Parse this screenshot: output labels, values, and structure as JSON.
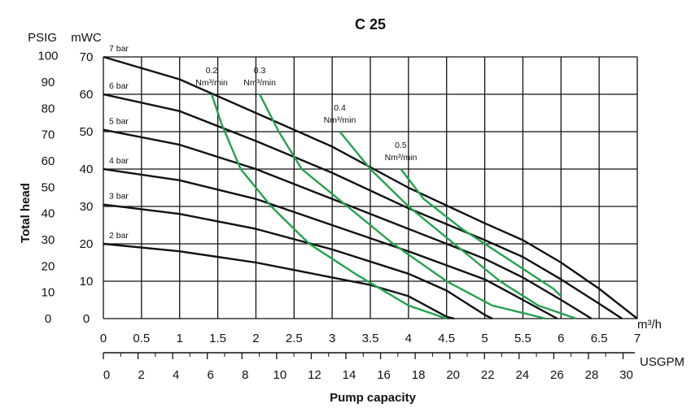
{
  "chart_data": {
    "type": "line",
    "title": "C 25",
    "xlabel": "Pump capacity",
    "ylabel": "Total head",
    "x_unit": "m³/h",
    "x2_unit": "USGPM",
    "y_unit": "mWC",
    "y2_unit": "PSIG",
    "xlim": [
      0,
      7
    ],
    "ylim": [
      0,
      70
    ],
    "grid": true,
    "x_ticks": [
      "0",
      "0.5",
      "1",
      "1.5",
      "2",
      "2.5",
      "3",
      "3.5",
      "4",
      "4.5",
      "5",
      "5.5",
      "6",
      "6.5",
      "7"
    ],
    "x2_ticks": [
      "0",
      "2",
      "4",
      "6",
      "8",
      "10",
      "12",
      "14",
      "16",
      "18",
      "20",
      "22",
      "24",
      "26",
      "28",
      "30"
    ],
    "y_ticks": [
      "0",
      "10",
      "20",
      "30",
      "40",
      "50",
      "60",
      "70"
    ],
    "y2_ticks": [
      "0",
      "10",
      "20",
      "30",
      "40",
      "50",
      "60",
      "70",
      "80",
      "90",
      "100"
    ],
    "pressure_curves": [
      {
        "label": "7 bar",
        "color": "#111111",
        "points": [
          [
            0,
            70
          ],
          [
            1,
            64
          ],
          [
            2,
            55
          ],
          [
            3,
            46
          ],
          [
            4,
            35
          ],
          [
            5,
            25.5
          ],
          [
            5.5,
            21
          ],
          [
            6,
            15
          ],
          [
            6.5,
            8
          ],
          [
            7,
            0
          ]
        ]
      },
      {
        "label": "6 bar",
        "color": "#111111",
        "points": [
          [
            0,
            60
          ],
          [
            1,
            55.5
          ],
          [
            2,
            47.5
          ],
          [
            3,
            39
          ],
          [
            4,
            29.5
          ],
          [
            5,
            21
          ],
          [
            5.5,
            16.5
          ],
          [
            6,
            10.5
          ],
          [
            6.5,
            4
          ],
          [
            6.8,
            0
          ]
        ]
      },
      {
        "label": "5 bar",
        "color": "#111111",
        "points": [
          [
            0,
            50.5
          ],
          [
            1,
            46.5
          ],
          [
            2,
            40
          ],
          [
            3,
            32
          ],
          [
            4,
            24
          ],
          [
            5,
            16
          ],
          [
            5.5,
            11
          ],
          [
            6,
            5
          ],
          [
            6.4,
            0
          ]
        ]
      },
      {
        "label": "4 bar",
        "color": "#111111",
        "points": [
          [
            0,
            40
          ],
          [
            1,
            37
          ],
          [
            2,
            32
          ],
          [
            3,
            25
          ],
          [
            4,
            18
          ],
          [
            5,
            10.5
          ],
          [
            5.5,
            5
          ],
          [
            5.95,
            0
          ]
        ]
      },
      {
        "label": "3 bar",
        "color": "#111111",
        "points": [
          [
            0,
            30.5
          ],
          [
            1,
            28
          ],
          [
            2,
            24
          ],
          [
            3,
            18.5
          ],
          [
            4,
            12
          ],
          [
            4.5,
            7.5
          ],
          [
            5,
            1
          ],
          [
            5.1,
            0
          ]
        ]
      },
      {
        "label": "2 bar",
        "color": "#111111",
        "points": [
          [
            0,
            20
          ],
          [
            1,
            18
          ],
          [
            2,
            15
          ],
          [
            3,
            11
          ],
          [
            3.5,
            9
          ],
          [
            4,
            6
          ],
          [
            4.5,
            0.5
          ],
          [
            4.6,
            0
          ]
        ]
      }
    ],
    "air_consumption_curves": [
      {
        "label_top": "0.2",
        "label_bottom": "Nm³/min",
        "color": "#23a24d",
        "points": [
          [
            1.42,
            60
          ],
          [
            1.55,
            52
          ],
          [
            1.8,
            40
          ],
          [
            2.2,
            30
          ],
          [
            2.7,
            20
          ],
          [
            3.3,
            12
          ],
          [
            4,
            3.5
          ],
          [
            4.5,
            0
          ]
        ]
      },
      {
        "label_top": "0.3",
        "label_bottom": "Nm³/min",
        "color": "#23a24d",
        "points": [
          [
            2.05,
            60
          ],
          [
            2.3,
            50
          ],
          [
            2.6,
            40
          ],
          [
            3.2,
            30
          ],
          [
            3.8,
            20
          ],
          [
            4.5,
            10
          ],
          [
            5.1,
            3.5
          ],
          [
            5.8,
            0
          ]
        ]
      },
      {
        "label_top": "0.4",
        "label_bottom": "Nm³/min",
        "color": "#23a24d",
        "points": [
          [
            3.1,
            50
          ],
          [
            3.5,
            40
          ],
          [
            4.0,
            30
          ],
          [
            4.6,
            20
          ],
          [
            5.2,
            10
          ],
          [
            5.7,
            3.5
          ],
          [
            6.2,
            0
          ]
        ]
      },
      {
        "label_top": "0.5",
        "label_bottom": "Nm³/min",
        "color": "#23a24d",
        "points": [
          [
            3.9,
            40
          ],
          [
            4.2,
            32
          ],
          [
            4.7,
            24
          ],
          [
            5.3,
            16
          ],
          [
            5.9,
            8
          ],
          [
            6.0,
            6
          ]
        ]
      }
    ]
  }
}
